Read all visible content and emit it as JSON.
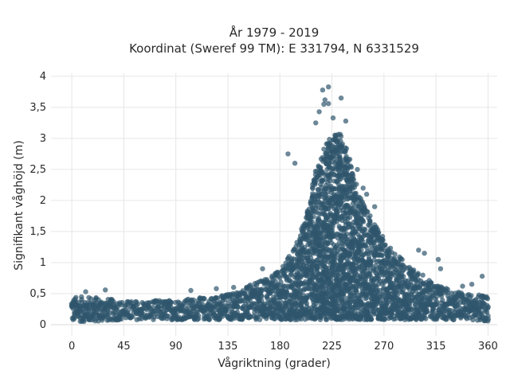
{
  "chart_data": {
    "type": "scatter",
    "title_line1": "År 1979 - 2019",
    "title_line2": "Koordinat (Sweref 99 TM): E 331794, N 6331529",
    "xlabel": "Vågriktning (grader)",
    "ylabel": "Signifikant våghöjd (m)",
    "xlim": [
      -18,
      368
    ],
    "ylim": [
      -0.18,
      4.05
    ],
    "xticks": [
      0,
      45,
      90,
      135,
      180,
      225,
      270,
      315,
      360
    ],
    "xtick_labels": [
      "0",
      "45",
      "90",
      "135",
      "180",
      "225",
      "270",
      "315",
      "360"
    ],
    "yticks": [
      0,
      0.5,
      1,
      1.5,
      2,
      2.5,
      3,
      3.5,
      4
    ],
    "ytick_labels": [
      "0",
      "0,5",
      "1",
      "1,5",
      "2",
      "2,5",
      "3",
      "3,5",
      "4"
    ],
    "marker_color": "#2f566c",
    "marker_opacity": 0.7,
    "grid": true,
    "envelope": {
      "x": [
        0,
        20,
        45,
        90,
        120,
        135,
        150,
        165,
        180,
        190,
        200,
        205,
        210,
        215,
        220,
        225,
        230,
        235,
        240,
        245,
        250,
        260,
        270,
        280,
        290,
        300,
        315,
        330,
        345,
        360
      ],
      "upper": [
        0.45,
        0.45,
        0.38,
        0.4,
        0.45,
        0.5,
        0.6,
        0.72,
        0.9,
        1.15,
        1.6,
        1.9,
        2.4,
        2.7,
        2.9,
        3.05,
        3.1,
        3.0,
        2.7,
        2.35,
        2.05,
        1.7,
        1.4,
        1.15,
        1.0,
        0.85,
        0.65,
        0.55,
        0.5,
        0.45
      ],
      "lower": [
        0.05,
        0.05,
        0.08,
        0.08,
        0.08,
        0.08,
        0.08,
        0.08,
        0.08,
        0.08,
        0.08,
        0.08,
        0.08,
        0.08,
        0.08,
        0.08,
        0.08,
        0.08,
        0.08,
        0.08,
        0.08,
        0.08,
        0.08,
        0.08,
        0.08,
        0.08,
        0.08,
        0.08,
        0.08,
        0.05
      ]
    },
    "outliers": [
      {
        "x": 222,
        "y": 3.83
      },
      {
        "x": 217,
        "y": 3.78
      },
      {
        "x": 219,
        "y": 3.62
      },
      {
        "x": 222,
        "y": 3.56
      },
      {
        "x": 218,
        "y": 3.55
      },
      {
        "x": 233,
        "y": 3.65
      },
      {
        "x": 214,
        "y": 3.43
      },
      {
        "x": 226,
        "y": 3.33
      },
      {
        "x": 211,
        "y": 3.25
      },
      {
        "x": 237,
        "y": 3.28
      },
      {
        "x": 247,
        "y": 2.5
      },
      {
        "x": 252,
        "y": 2.2
      },
      {
        "x": 255,
        "y": 2.1
      },
      {
        "x": 300,
        "y": 1.2
      },
      {
        "x": 305,
        "y": 1.15
      },
      {
        "x": 317,
        "y": 1.05
      },
      {
        "x": 319,
        "y": 0.9
      },
      {
        "x": 355,
        "y": 0.78
      },
      {
        "x": 346,
        "y": 0.65
      },
      {
        "x": 338,
        "y": 0.62
      },
      {
        "x": 29,
        "y": 0.56
      },
      {
        "x": 12,
        "y": 0.53
      },
      {
        "x": 103,
        "y": 0.55
      },
      {
        "x": 125,
        "y": 0.58
      },
      {
        "x": 140,
        "y": 0.6
      },
      {
        "x": 165,
        "y": 0.9
      },
      {
        "x": 187,
        "y": 2.75
      },
      {
        "x": 193,
        "y": 2.6
      },
      {
        "x": 233,
        "y": 1.95
      },
      {
        "x": 262,
        "y": 1.9
      },
      {
        "x": 268,
        "y": 1.35
      }
    ]
  }
}
